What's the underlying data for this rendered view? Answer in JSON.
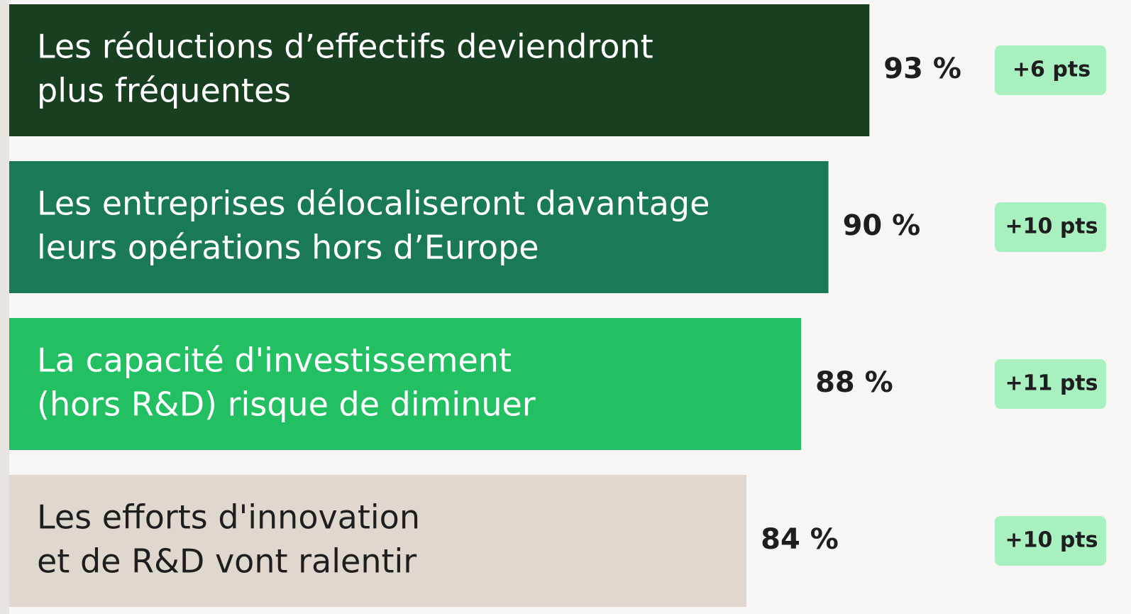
{
  "chart_data": {
    "type": "bar",
    "categories": [
      [
        "Les réductions d’effectifs deviendront",
        "plus fréquentes"
      ],
      [
        "Les entreprises délocaliseront davantage",
        "leurs opérations hors d’Europe"
      ],
      [
        "La capacité d'investissement",
        "(hors R&D) risque de diminuer"
      ],
      [
        "Les efforts d'innovation",
        "et de R&D vont ralentir"
      ]
    ],
    "values": [
      93,
      90,
      88,
      84
    ],
    "value_labels": [
      "93 %",
      "90 %",
      "88 %",
      "84 %"
    ],
    "colors": [
      "#173f20",
      "#1a7a55",
      "#22c063",
      "#e0d8ce"
    ],
    "label_colors": [
      "#ffffff",
      "#ffffff",
      "#ffffff",
      "#1e1e1e"
    ],
    "changes": {
      "values": [
        6,
        10,
        11,
        10
      ],
      "value_labels": [
        "+6 pts",
        "+10 pts",
        "+11 pts",
        "+10 pts"
      ],
      "color": "#a8f0c0"
    },
    "xlim": [
      30,
      100
    ]
  }
}
